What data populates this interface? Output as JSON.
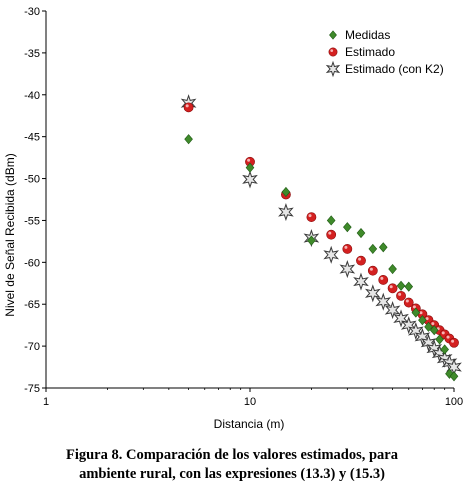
{
  "caption": {
    "line1": "Figura 8. Comparación de los valores estimados, para",
    "line2": "ambiente rural, con las expresiones (13.3) y (15.3)"
  },
  "chart_data": {
    "type": "scatter",
    "title": "",
    "xlabel": "Distancia (m)",
    "ylabel": "Nivel de Señal Recibida (dBm)",
    "xscale": "log",
    "xlim": [
      1,
      100
    ],
    "ylim": [
      -75,
      -30
    ],
    "xticks": [
      1,
      10,
      100
    ],
    "yticks": [
      -30,
      -35,
      -40,
      -45,
      -50,
      -55,
      -60,
      -65,
      -70,
      -75
    ],
    "grid": false,
    "legend_position": "top-right",
    "series": [
      {
        "name": "Medidas",
        "marker": "diamond",
        "color": "#3f8a2a",
        "x": [
          5,
          10,
          15,
          20,
          25,
          30,
          35,
          40,
          45,
          50,
          55,
          60,
          65,
          70,
          75,
          80,
          85,
          90,
          95,
          100
        ],
        "y": [
          -45.3,
          -48.7,
          -51.6,
          -57.4,
          -55.0,
          -55.8,
          -56.5,
          -58.4,
          -58.2,
          -60.8,
          -62.8,
          -62.9,
          -66.0,
          -66.9,
          -67.7,
          -68.1,
          -69.2,
          -70.4,
          -73.3,
          -73.6
        ]
      },
      {
        "name": "Estimado",
        "marker": "circle",
        "color": "#d42020",
        "x": [
          5,
          10,
          15,
          20,
          25,
          30,
          35,
          40,
          45,
          50,
          55,
          60,
          65,
          70,
          75,
          80,
          85,
          90,
          95,
          100
        ],
        "y": [
          -41.5,
          -48.0,
          -51.9,
          -54.6,
          -56.7,
          -58.4,
          -59.8,
          -61.0,
          -62.1,
          -63.1,
          -64.0,
          -64.8,
          -65.5,
          -66.2,
          -66.9,
          -67.5,
          -68.1,
          -68.6,
          -69.1,
          -69.6
        ]
      },
      {
        "name": "Estimado (con K2)",
        "marker": "star",
        "color": "#9a9a9a",
        "x": [
          5,
          10,
          15,
          20,
          25,
          30,
          35,
          40,
          45,
          50,
          55,
          60,
          65,
          70,
          75,
          80,
          85,
          90,
          95,
          100
        ],
        "y": [
          -41.0,
          -50.1,
          -54.0,
          -57.1,
          -59.1,
          -60.8,
          -62.3,
          -63.7,
          -64.7,
          -65.7,
          -66.7,
          -67.5,
          -68.2,
          -68.9,
          -69.6,
          -70.3,
          -70.9,
          -71.5,
          -72.0,
          -72.5
        ]
      }
    ]
  }
}
